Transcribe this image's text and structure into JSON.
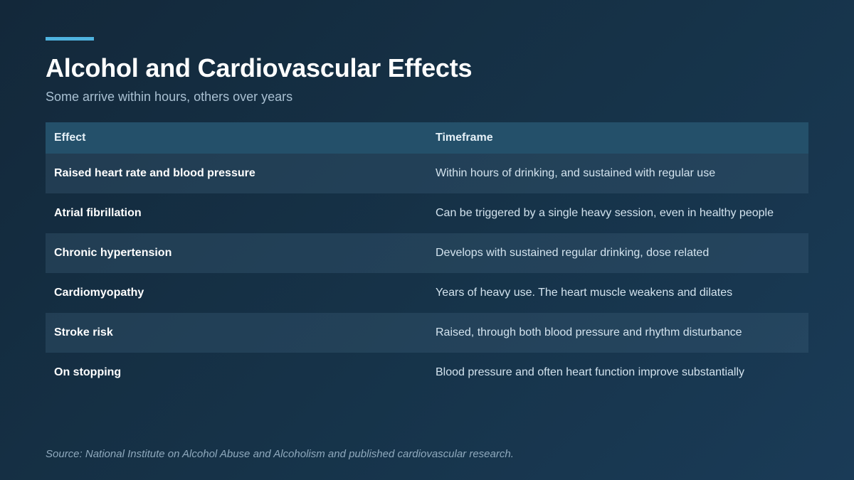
{
  "header": {
    "title": "Alcohol and Cardiovascular Effects",
    "subtitle": "Some arrive within hours, others over years"
  },
  "table": {
    "columns": [
      "Effect",
      "Timeframe"
    ],
    "rows": [
      {
        "effect": "Raised heart rate and blood pressure",
        "timeframe": "Within hours of drinking, and sustained with regular use"
      },
      {
        "effect": "Atrial fibrillation",
        "timeframe": "Can be triggered by a single heavy session, even in healthy people"
      },
      {
        "effect": "Chronic hypertension",
        "timeframe": "Develops with sustained regular drinking, dose related"
      },
      {
        "effect": "Cardiomyopathy",
        "timeframe": "Years of heavy use. The heart muscle weakens and dilates"
      },
      {
        "effect": "Stroke risk",
        "timeframe": "Raised, through both blood pressure and rhythm disturbance"
      },
      {
        "effect": "On stopping",
        "timeframe": "Blood pressure and often heart function improve substantially"
      }
    ]
  },
  "footer": {
    "source": "Source: National Institute on Alcohol Abuse and Alcoholism and published cardiovascular research."
  },
  "colors": {
    "accent": "#4fb3df",
    "background": "#163349",
    "header_row": "#24506a"
  }
}
